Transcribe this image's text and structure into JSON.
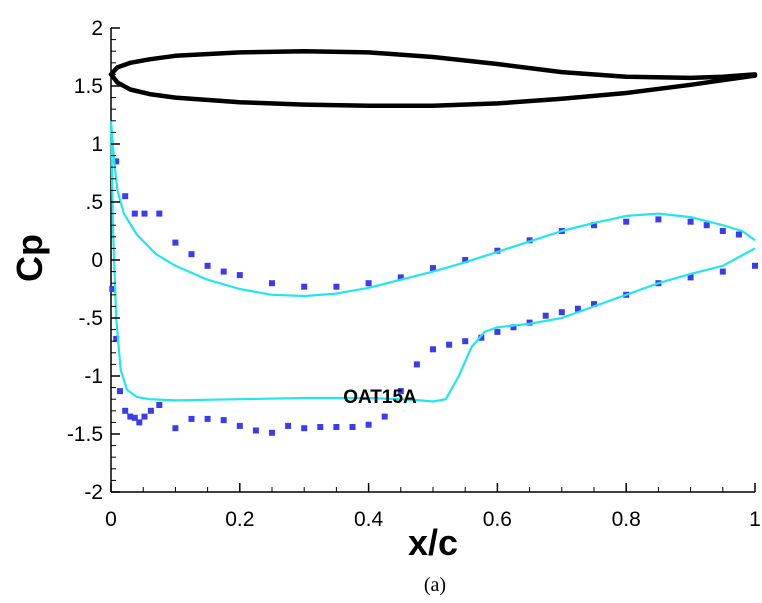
{
  "chart_data": {
    "type": "scatter",
    "xlabel": "x/c",
    "ylabel": "Cp",
    "xlim": [
      0,
      1
    ],
    "ylim": [
      2,
      -2
    ],
    "y_inverted": true,
    "grid": false,
    "x_ticks": [
      0,
      0.2,
      0.4,
      0.6,
      0.8,
      1
    ],
    "x_tick_labels": [
      "0",
      "0.2",
      "0.4",
      "0.6",
      "0.8",
      "1"
    ],
    "y_ticks": [
      -2,
      -1.5,
      -1,
      -0.5,
      0,
      0.5,
      1,
      1.5,
      2
    ],
    "y_tick_labels": [
      "-2",
      "-1.5",
      "-1",
      "-.5",
      "0",
      ".5",
      "1",
      "1.5",
      "2"
    ],
    "annotation": "OAT15A",
    "caption": "(a)",
    "colors": {
      "experiment": "#3b3bef",
      "computation": "#22e6ee",
      "airfoil": "#000000"
    },
    "series": [
      {
        "kind": "markers",
        "x": [
          0.002,
          0.008,
          0.014,
          0.022,
          0.03,
          0.037,
          0.044,
          0.052,
          0.062,
          0.075,
          0.1,
          0.125,
          0.15,
          0.175,
          0.2,
          0.225,
          0.25,
          0.275,
          0.3,
          0.325,
          0.35,
          0.375,
          0.4,
          0.425,
          0.45,
          0.475,
          0.5,
          0.525,
          0.55,
          0.575,
          0.6,
          0.625,
          0.65,
          0.675,
          0.7,
          0.725,
          0.75,
          0.8,
          0.85,
          0.9,
          0.95,
          1.0
        ],
        "y": [
          -0.25,
          -0.68,
          -1.13,
          -1.3,
          -1.35,
          -1.36,
          -1.4,
          -1.35,
          -1.3,
          -1.25,
          -1.45,
          -1.37,
          -1.37,
          -1.38,
          -1.43,
          -1.47,
          -1.49,
          -1.43,
          -1.45,
          -1.44,
          -1.44,
          -1.44,
          -1.42,
          -1.35,
          -1.13,
          -0.9,
          -0.77,
          -0.73,
          -0.7,
          -0.67,
          -0.62,
          -0.58,
          -0.54,
          -0.48,
          -0.45,
          -0.42,
          -0.38,
          -0.3,
          -0.2,
          -0.15,
          -0.1,
          -0.05
        ]
      },
      {
        "kind": "markers",
        "x": [
          0.008,
          0.022,
          0.037,
          0.052,
          0.075,
          0.1,
          0.125,
          0.15,
          0.175,
          0.2,
          0.25,
          0.3,
          0.35,
          0.4,
          0.45,
          0.5,
          0.55,
          0.6,
          0.65,
          0.7,
          0.75,
          0.8,
          0.85,
          0.9,
          0.925,
          0.95,
          0.975
        ],
        "y": [
          0.85,
          0.55,
          0.4,
          0.4,
          0.4,
          0.15,
          0.05,
          -0.05,
          -0.1,
          -0.13,
          -0.2,
          -0.23,
          -0.23,
          -0.2,
          -0.15,
          -0.07,
          0.0,
          0.08,
          0.17,
          0.25,
          0.3,
          0.33,
          0.35,
          0.33,
          0.3,
          0.25,
          0.22
        ]
      },
      {
        "kind": "line",
        "x": [
          0,
          0.003,
          0.008,
          0.015,
          0.025,
          0.04,
          0.06,
          0.1,
          0.2,
          0.3,
          0.4,
          0.45,
          0.48,
          0.5,
          0.52,
          0.54,
          0.56,
          0.58,
          0.6,
          0.65,
          0.7,
          0.75,
          0.8,
          0.85,
          0.9,
          0.95,
          1.0
        ],
        "y": [
          1.2,
          0.3,
          -0.5,
          -0.95,
          -1.12,
          -1.18,
          -1.2,
          -1.21,
          -1.2,
          -1.19,
          -1.19,
          -1.2,
          -1.21,
          -1.22,
          -1.2,
          -1.0,
          -0.75,
          -0.62,
          -0.58,
          -0.55,
          -0.5,
          -0.4,
          -0.3,
          -0.2,
          -0.12,
          -0.05,
          0.1
        ]
      },
      {
        "kind": "line",
        "x": [
          0,
          0.005,
          0.01,
          0.02,
          0.04,
          0.07,
          0.1,
          0.15,
          0.2,
          0.25,
          0.3,
          0.35,
          0.4,
          0.45,
          0.5,
          0.55,
          0.6,
          0.65,
          0.7,
          0.75,
          0.8,
          0.85,
          0.9,
          0.95,
          0.98,
          1.0
        ],
        "y": [
          1.2,
          0.85,
          0.6,
          0.4,
          0.22,
          0.05,
          -0.05,
          -0.17,
          -0.25,
          -0.3,
          -0.31,
          -0.29,
          -0.24,
          -0.17,
          -0.1,
          -0.02,
          0.07,
          0.16,
          0.25,
          0.32,
          0.38,
          0.4,
          0.37,
          0.3,
          0.25,
          0.17
        ]
      }
    ],
    "airfoil_profile": {
      "upper": {
        "x": [
          0,
          0.01,
          0.03,
          0.06,
          0.1,
          0.2,
          0.3,
          0.4,
          0.5,
          0.6,
          0.7,
          0.8,
          0.9,
          0.95,
          1.0
        ],
        "y": [
          1.6,
          1.53,
          1.47,
          1.43,
          1.4,
          1.36,
          1.34,
          1.33,
          1.33,
          1.35,
          1.39,
          1.44,
          1.51,
          1.55,
          1.59
        ]
      },
      "lower": {
        "x": [
          0,
          0.01,
          0.03,
          0.06,
          0.1,
          0.2,
          0.3,
          0.4,
          0.5,
          0.6,
          0.7,
          0.8,
          0.9,
          0.95,
          1.0
        ],
        "y": [
          1.6,
          1.66,
          1.7,
          1.73,
          1.76,
          1.79,
          1.8,
          1.79,
          1.75,
          1.69,
          1.62,
          1.58,
          1.57,
          1.58,
          1.6
        ]
      }
    }
  }
}
